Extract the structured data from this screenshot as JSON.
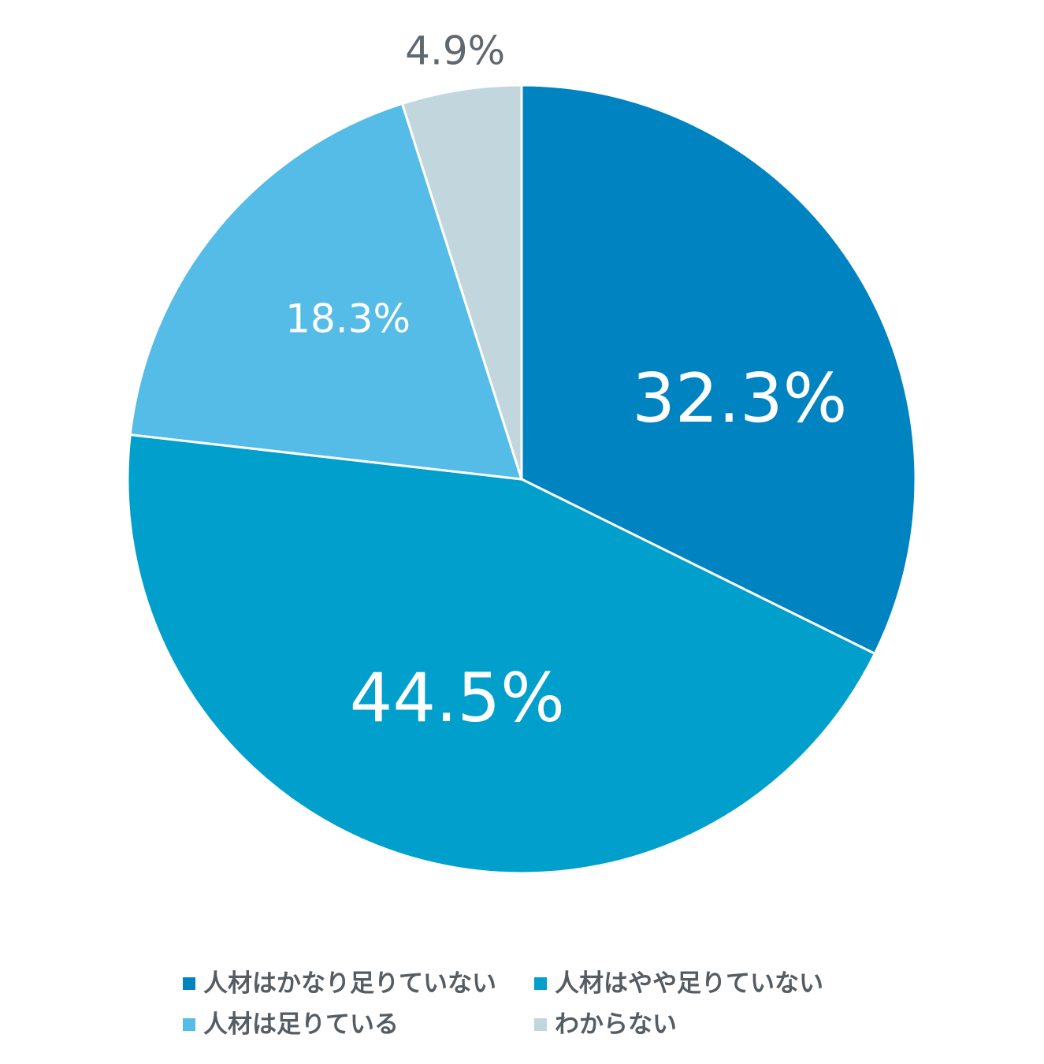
{
  "chart_data": {
    "type": "pie",
    "title": "",
    "start_angle_deg": 0,
    "direction": "clockwise",
    "slices": [
      {
        "label": "人材はかなり足りていない",
        "value": 32.3,
        "value_label": "32.3%",
        "color": "#0083c1",
        "label_color": "#ffffff"
      },
      {
        "label": "人材はやや足りていない",
        "value": 44.5,
        "value_label": "44.5%",
        "color": "#009fcc",
        "label_color": "#ffffff"
      },
      {
        "label": "人材は足りている",
        "value": 18.3,
        "value_label": "18.3%",
        "color": "#54bce6",
        "label_color": "#ffffff"
      },
      {
        "label": "わからない",
        "value": 4.9,
        "value_label": "4.9%",
        "color": "#c2d6de",
        "label_color": "#5f686e"
      }
    ],
    "legend": {
      "position": "bottom",
      "columns": 2
    }
  }
}
